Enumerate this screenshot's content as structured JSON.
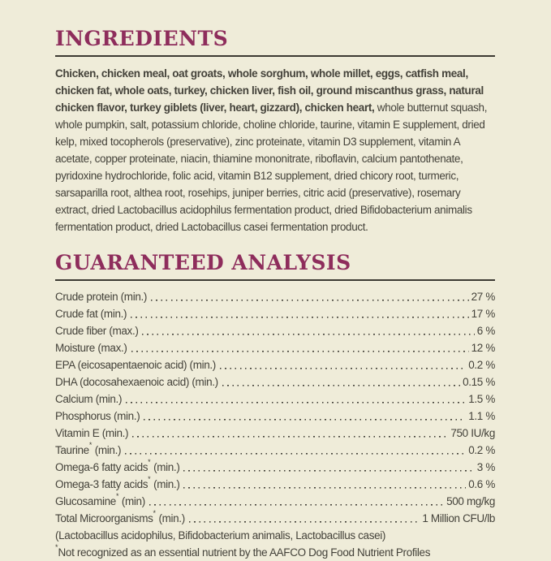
{
  "theme": {
    "bg": "#efecd9",
    "accent": "#8e2d5c",
    "ink": "#44423a",
    "rule": "#3c3a32"
  },
  "ingredients": {
    "title": "INGREDIENTS",
    "bold": "Chicken, chicken meal, oat groats, whole sorghum, whole millet, eggs, catfish meal, chicken fat, whole oats, turkey, chicken liver, fish oil, ground miscanthus grass, natural chicken flavor, turkey giblets (liver, heart, gizzard), chicken heart,",
    "regular": " whole butternut squash, whole pumpkin, salt, potassium chloride, choline chloride, taurine, vitamin E supplement, dried kelp, mixed tocopherols (preservative), zinc proteinate, vitamin D3 supplement, vitamin A acetate, copper proteinate, niacin, thiamine mononitrate, riboflavin, calcium pantothenate, pyridoxine hydrochloride, folic acid, vitamin B12 supplement, dried chicory root, turmeric, sarsaparilla root, althea root, rosehips, juniper berries, citric acid (preservative), rosemary extract, dried Lactobacillus acidophilus fermentation product, dried Bifidobacterium animalis fermentation product, dried Lactobacillus casei fermentation product."
  },
  "analysis": {
    "title": "GUARANTEED ANALYSIS",
    "rows": [
      {
        "name": "Crude protein",
        "mark": "",
        "qual": " (min.)",
        "value": "27 %"
      },
      {
        "name": "Crude fat",
        "mark": "",
        "qual": " (min.)",
        "value": "17 %"
      },
      {
        "name": "Crude fiber",
        "mark": "",
        "qual": " (max.)",
        "value": "6 %"
      },
      {
        "name": "Moisture",
        "mark": "",
        "qual": " (max.)",
        "value": "12 %"
      },
      {
        "name": "EPA (eicosapentaenoic acid)",
        "mark": "",
        "qual": " (min.)",
        "value": "0.2 %"
      },
      {
        "name": "DHA (docosahexaenoic acid)",
        "mark": "",
        "qual": " (min.)",
        "value": "0.15 %"
      },
      {
        "name": "Calcium",
        "mark": "",
        "qual": " (min.)",
        "value": "1.5 %"
      },
      {
        "name": "Phosphorus",
        "mark": "",
        "qual": " (min.)",
        "value": "1.1 %"
      },
      {
        "name": "Vitamin E",
        "mark": "",
        "qual": " (min.)",
        "value": "750 IU/kg"
      },
      {
        "name": "Taurine",
        "mark": "*",
        "qual": " (min.)",
        "value": "0.2 %"
      },
      {
        "name": "Omega-6 fatty acids",
        "mark": "*",
        "qual": " (min.)",
        "value": "3 %"
      },
      {
        "name": "Omega-3 fatty acids",
        "mark": "*",
        "qual": " (min.)",
        "value": "0.6 %"
      },
      {
        "name": "Glucosamine",
        "mark": "*",
        "qual": " (min)",
        "value": "500 mg/kg"
      },
      {
        "name": "Total Microorganisms",
        "mark": "*",
        "qual": " (min.)",
        "value": "1 Million CFU/lb"
      }
    ],
    "species_note": "(Lactobacillus acidophilus, Bifidobacterium animalis, Lactobacillus casei)",
    "footnote_mark": "*",
    "footnote": "Not recognized as an essential nutrient by the AAFCO Dog Food Nutrient Profiles"
  }
}
